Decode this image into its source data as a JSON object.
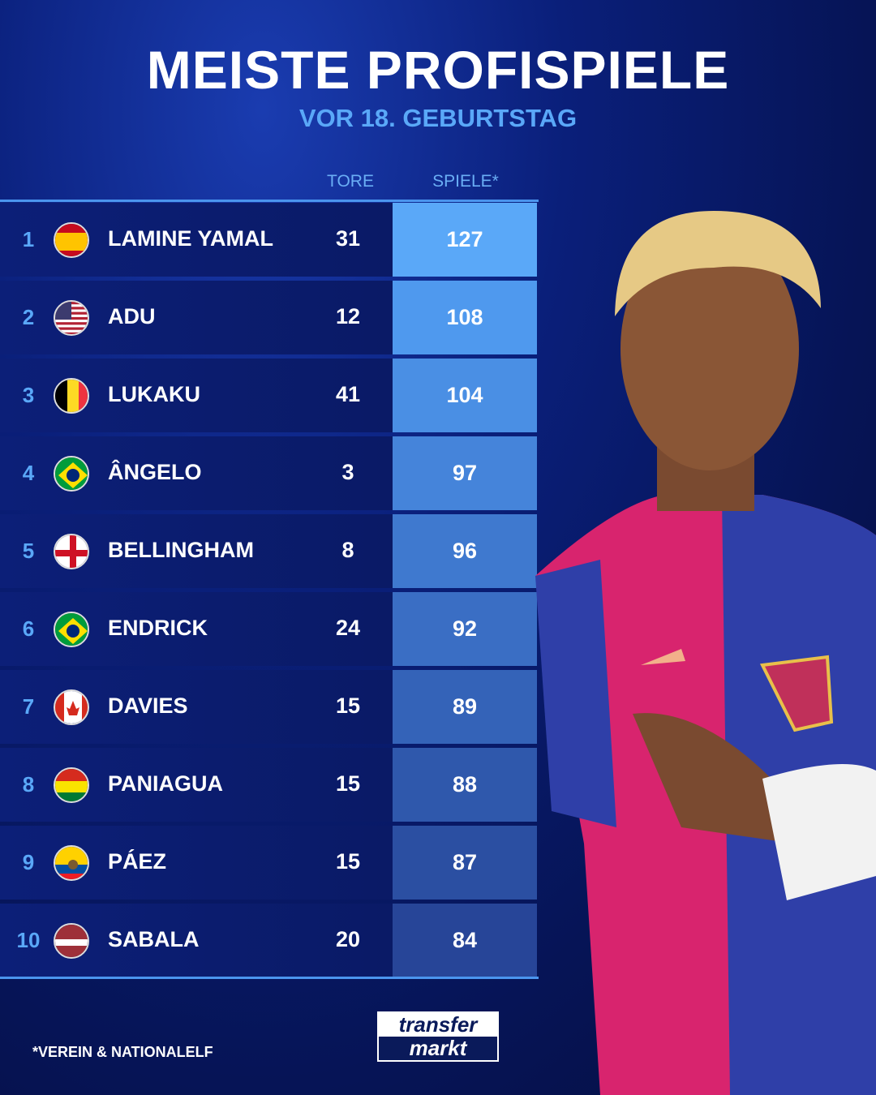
{
  "title": "MEISTE PROFISPIELE",
  "subtitle": "VOR 18. GEBURTSTAG",
  "footnote": "*VEREIN & NATIONALELF",
  "logo": {
    "line1": "transfer",
    "line2": "markt"
  },
  "colors": {
    "accent": "#5aa8f8",
    "row_bg": "#0c1f78",
    "background": "#061456"
  },
  "chart_data": {
    "type": "table",
    "columns": [
      "",
      "",
      "",
      "TORE",
      "SPIELE*"
    ],
    "rows": [
      {
        "rank": "1",
        "flag": "spain-flag",
        "name": "LAMINE YAMAL",
        "tore": "31",
        "spiele": "127",
        "color": "#5aa8f8"
      },
      {
        "rank": "2",
        "flag": "usa-flag",
        "name": "ADU",
        "tore": "12",
        "spiele": "108",
        "color": "#4f99ee"
      },
      {
        "rank": "3",
        "flag": "belgium-flag",
        "name": "LUKAKU",
        "tore": "41",
        "spiele": "104",
        "color": "#4a8fe4"
      },
      {
        "rank": "4",
        "flag": "brazil-flag",
        "name": "ÂNGELO",
        "tore": "3",
        "spiele": "97",
        "color": "#4584da"
      },
      {
        "rank": "5",
        "flag": "england-flag",
        "name": "BELLINGHAM",
        "tore": "8",
        "spiele": "96",
        "color": "#3f79cf"
      },
      {
        "rank": "6",
        "flag": "brazil-flag",
        "name": "ENDRICK",
        "tore": "24",
        "spiele": "92",
        "color": "#3a6ec4"
      },
      {
        "rank": "7",
        "flag": "canada-flag",
        "name": "DAVIES",
        "tore": "15",
        "spiele": "89",
        "color": "#3463b8"
      },
      {
        "rank": "8",
        "flag": "bolivia-flag",
        "name": "PANIAGUA",
        "tore": "15",
        "spiele": "88",
        "color": "#2f58ac"
      },
      {
        "rank": "9",
        "flag": "ecuador-flag",
        "name": "PÁEZ",
        "tore": "15",
        "spiele": "87",
        "color": "#2b4fa2"
      },
      {
        "rank": "10",
        "flag": "latvia-flag",
        "name": "SABALA",
        "tore": "20",
        "spiele": "84",
        "color": "#274598"
      }
    ]
  }
}
